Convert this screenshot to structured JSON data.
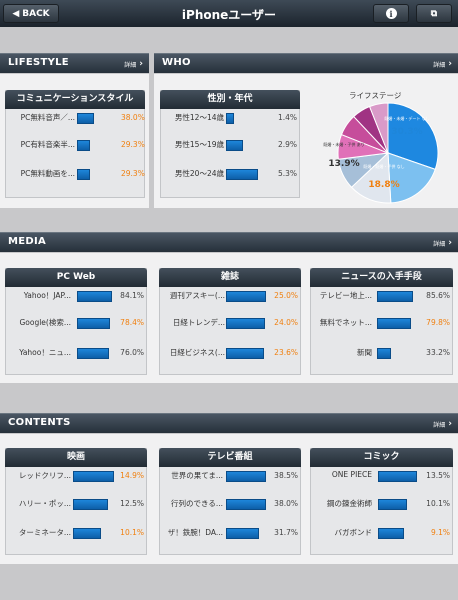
{
  "topbar": {
    "title": "iPhoneユーザー",
    "back_label": "BACK"
  },
  "sections": {
    "lifestyle": {
      "title": "LIFESTYLE",
      "more": "詳細"
    },
    "who": {
      "title": "WHO",
      "more": "詳細"
    },
    "media": {
      "title": "MEDIA",
      "more": "詳細"
    },
    "contents": {
      "title": "CONTENTS",
      "more": "詳細"
    }
  },
  "cards": {
    "comm": {
      "title": "コミュニケーションスタイル",
      "rows": [
        {
          "label": "PC無料音声／...",
          "pct": "38.0%",
          "value": 38.0,
          "accent": true
        },
        {
          "label": "PC有料音楽半...",
          "pct": "29.3%",
          "value": 29.3,
          "accent": true
        },
        {
          "label": "PC無料動画を...",
          "pct": "29.3%",
          "value": 29.3,
          "accent": true
        }
      ]
    },
    "gender": {
      "title": "性別・年代",
      "rows": [
        {
          "label": "男性12～14歳",
          "pct": "1.4%",
          "value": 1.4,
          "accent": false
        },
        {
          "label": "男性15～19歳",
          "pct": "2.9%",
          "value": 2.9,
          "accent": false
        },
        {
          "label": "男性20～24歳",
          "pct": "5.3%",
          "value": 5.3,
          "accent": false
        }
      ]
    },
    "pcweb": {
      "title": "PC Web",
      "rows": [
        {
          "label": "Yahoo！JAP...",
          "pct": "84.1%",
          "value": 84.1,
          "accent": false
        },
        {
          "label": "Google(検索...",
          "pct": "78.4%",
          "value": 78.4,
          "accent": true
        },
        {
          "label": "Yahoo！ニュ...",
          "pct": "76.0%",
          "value": 76.0,
          "accent": false
        }
      ]
    },
    "magazine": {
      "title": "雑誌",
      "rows": [
        {
          "label": "週刊アスキー(...",
          "pct": "25.0%",
          "value": 25.0,
          "accent": true
        },
        {
          "label": "日経トレンデ...",
          "pct": "24.0%",
          "value": 24.0,
          "accent": true
        },
        {
          "label": "日経ビジネス(...",
          "pct": "23.6%",
          "value": 23.6,
          "accent": true
        }
      ]
    },
    "news": {
      "title": "ニュースの入手手段",
      "rows": [
        {
          "label": "テレビー地上...",
          "pct": "85.6%",
          "value": 85.6,
          "accent": false
        },
        {
          "label": "無料でネット...",
          "pct": "79.8%",
          "value": 79.8,
          "accent": true
        },
        {
          "label": "新聞",
          "pct": "33.2%",
          "value": 33.2,
          "accent": false
        }
      ]
    },
    "movie": {
      "title": "映画",
      "rows": [
        {
          "label": "レッドクリフ...",
          "pct": "14.9%",
          "value": 14.9,
          "accent": true
        },
        {
          "label": "ハリー・ポッ...",
          "pct": "12.5%",
          "value": 12.5,
          "accent": false
        },
        {
          "label": "ターミネータ...",
          "pct": "10.1%",
          "value": 10.1,
          "accent": true
        }
      ]
    },
    "tv": {
      "title": "テレビ番組",
      "rows": [
        {
          "label": "世界の果てま...",
          "pct": "38.5%",
          "value": 38.5,
          "accent": false
        },
        {
          "label": "行列のできる...",
          "pct": "38.0%",
          "value": 38.0,
          "accent": false
        },
        {
          "label": "ザ！鉄腕！DA...",
          "pct": "31.7%",
          "value": 31.7,
          "accent": false
        }
      ]
    },
    "comic": {
      "title": "コミック",
      "rows": [
        {
          "label": "ONE PIECE",
          "pct": "13.5%",
          "value": 13.5,
          "accent": false
        },
        {
          "label": "鋼の錬金術師",
          "pct": "10.1%",
          "value": 10.1,
          "accent": false
        },
        {
          "label": "バガボンド",
          "pct": "9.1%",
          "value": 9.1,
          "accent": true
        }
      ]
    }
  },
  "pie": {
    "title": "ライフステージ",
    "labels": [
      {
        "text": "30.3%",
        "sub": "既婚・未婚・デート なし",
        "color": "#1e86da"
      },
      {
        "text": "18.8%",
        "sub": "既婚・既婚・子供 なし",
        "color": "#f08010"
      },
      {
        "text": "13.9%",
        "sub": "既婚・未婚・子供 あり",
        "color": "#333333"
      }
    ],
    "slices": [
      {
        "value": 30.3,
        "color": "#1e88e0"
      },
      {
        "value": 18.8,
        "color": "#7cc0f0"
      },
      {
        "value": 13.9,
        "color": "#e0e6ee"
      },
      {
        "value": 10.0,
        "color": "#a6bfd8"
      },
      {
        "value": 8.0,
        "color": "#e070b8"
      },
      {
        "value": 7.0,
        "color": "#c64d9b"
      },
      {
        "value": 6.0,
        "color": "#a03383"
      },
      {
        "value": 6.0,
        "color": "#d99ac8"
      }
    ]
  },
  "colors": {
    "bar": "#1677cc",
    "accent": "#f08010"
  }
}
